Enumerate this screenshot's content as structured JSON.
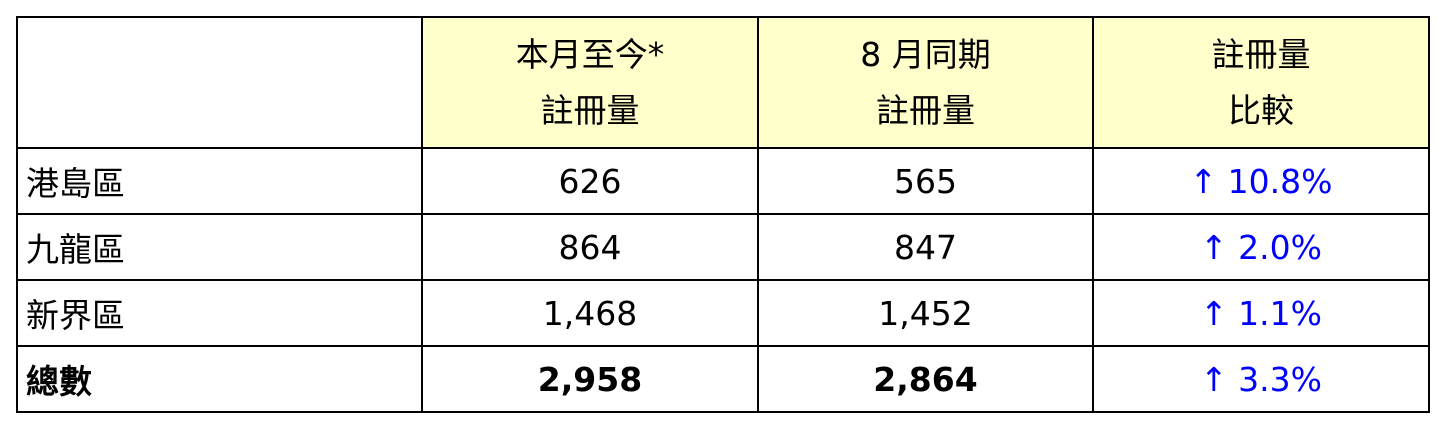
{
  "headers": [
    "",
    "本月至今*\n註冊量",
    "8 月同期\n註冊量",
    "註冊量\n比較"
  ],
  "header_lines": [
    [
      "本月至今*",
      "註冊量"
    ],
    [
      "8 月同期",
      "註冊量"
    ],
    [
      "註冊量",
      "比較"
    ]
  ],
  "rows": [
    {
      "district": "港島區",
      "current": "626",
      "same_period": "565",
      "change": "↑ 10.8%"
    },
    {
      "district": "九龍區",
      "current": "864",
      "same_period": "847",
      "change": "↑ 2.0%"
    },
    {
      "district": "新界區",
      "current": "1,468",
      "same_period": "1,452",
      "change": "↑ 1.1%"
    },
    {
      "district": "總數",
      "current": "2,958",
      "same_period": "2,864",
      "change": "↑ 3.3%"
    }
  ],
  "colors": {
    "header_bg": "#ffffcc",
    "change_text": "#0000ff"
  }
}
